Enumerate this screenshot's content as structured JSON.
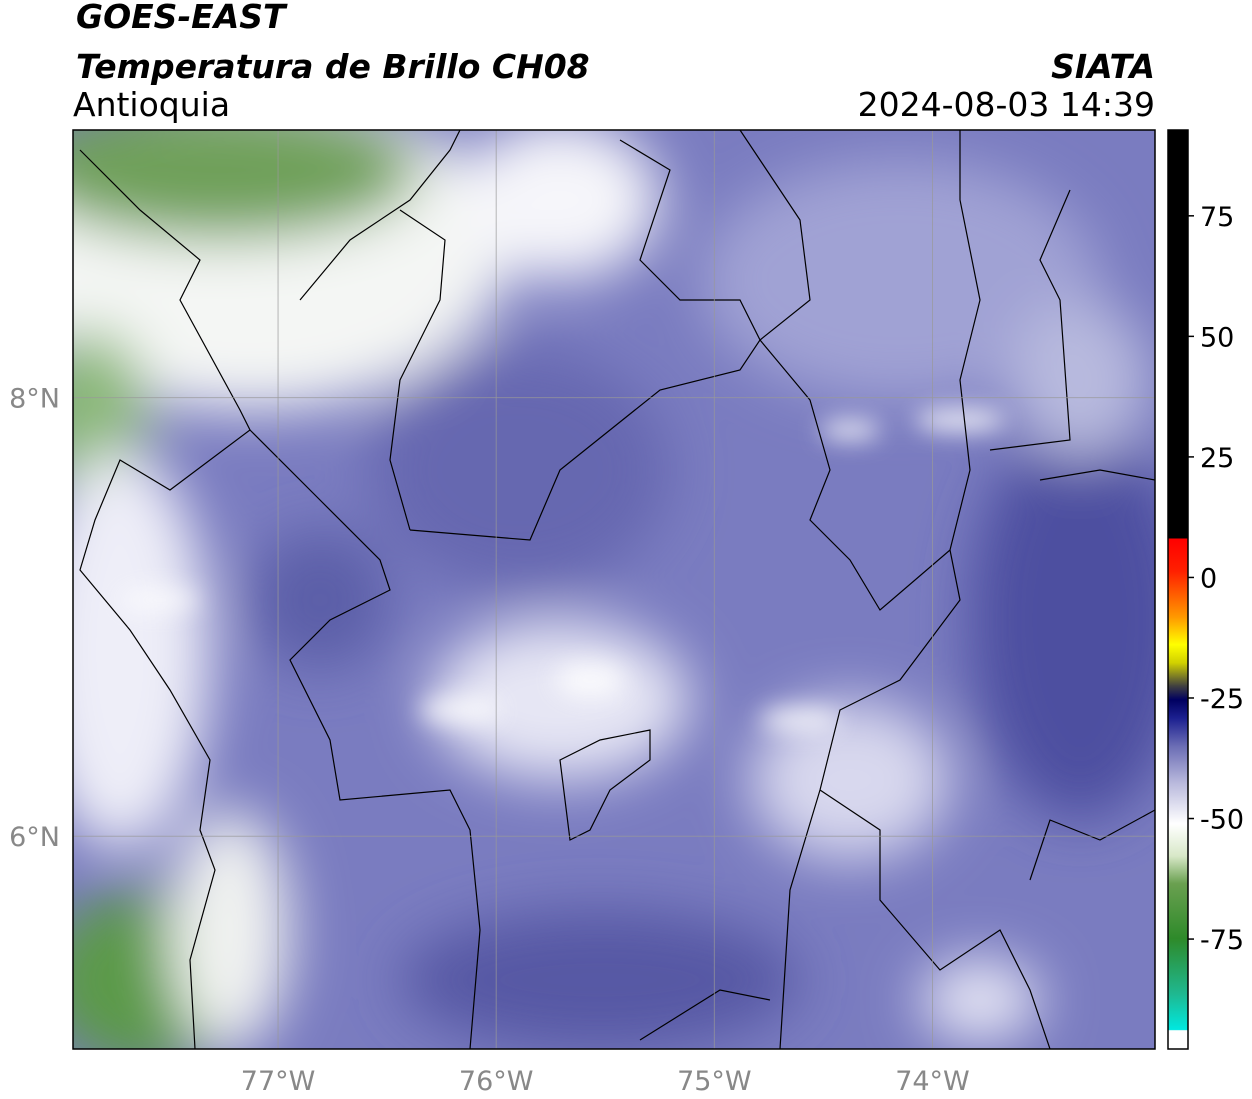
{
  "header": {
    "title": "GOES-EAST",
    "subtitle": "Temperatura de Brillo CH08",
    "region": "Antioquia",
    "source": "SIATA",
    "timestamp": "2024-08-03 14:39"
  },
  "map": {
    "xlim": [
      -77.94,
      -72.98
    ],
    "ylim": [
      5.03,
      9.22
    ],
    "xticks": [
      {
        "value": -77,
        "label": "77°W"
      },
      {
        "value": -76,
        "label": "76°W"
      },
      {
        "value": -75,
        "label": "75°W"
      },
      {
        "value": -74,
        "label": "74°W"
      }
    ],
    "yticks": [
      {
        "value": 8,
        "label": "8°N"
      },
      {
        "value": 6,
        "label": "6°N"
      }
    ],
    "grid": true
  },
  "colorbar": {
    "lim": [
      -97.8,
      92.8
    ],
    "ticks": [
      75,
      50,
      25,
      0,
      -25,
      -50,
      -75
    ]
  }
}
